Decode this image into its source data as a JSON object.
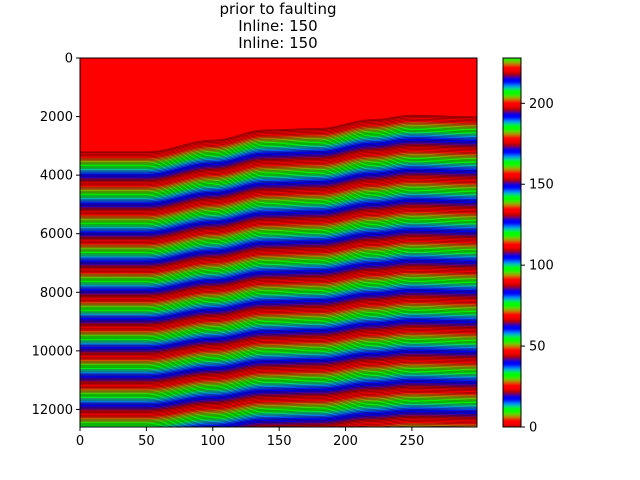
{
  "chart_data": {
    "type": "heatmap",
    "title": "prior to faulting",
    "subtitles": [
      "Inline: 150",
      "Inline: 150"
    ],
    "xlabel": "",
    "ylabel": "",
    "x_range": [
      0,
      299
    ],
    "y_range": [
      0,
      12600
    ],
    "y_inverted": true,
    "x_ticks": [
      "0",
      "50",
      "100",
      "150",
      "200",
      "250"
    ],
    "y_ticks": [
      "0",
      "2000",
      "4000",
      "6000",
      "8000",
      "10000",
      "12000"
    ],
    "colormap": "prism",
    "colorbar": {
      "range": [
        0,
        228
      ],
      "ticks": [
        "0",
        "50",
        "100",
        "150",
        "200"
      ]
    },
    "top_fill_color": "#ff0000",
    "horizon_line_color": "#000000",
    "top_surface": {
      "x": [
        0,
        50,
        100,
        140,
        180,
        220,
        250,
        299
      ],
      "y": [
        3200,
        3200,
        2800,
        2450,
        2400,
        2100,
        1950,
        2000
      ]
    },
    "layer_thickness": 45,
    "grid": false
  }
}
